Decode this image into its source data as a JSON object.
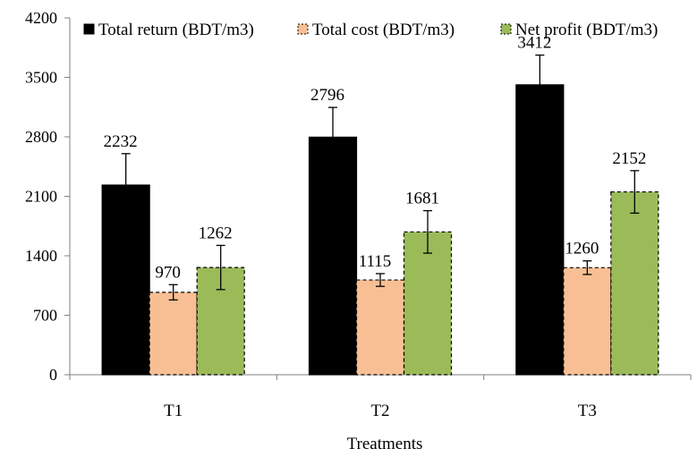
{
  "chart_data": {
    "type": "bar",
    "title": "",
    "xlabel": "Treatments",
    "ylabel": "",
    "categories": [
      "T1",
      "T2",
      "T3"
    ],
    "ylim": [
      0,
      4200
    ],
    "yticks": [
      "0",
      "700",
      "1400",
      "2100",
      "2800",
      "3500",
      "4200"
    ],
    "legend_position": "top",
    "grid": false,
    "series": [
      {
        "name": "Total return (BDT/m3)",
        "values": [
          2232,
          2796,
          3412
        ],
        "errors": [
          370,
          350,
          350
        ],
        "color": "#000000",
        "edge": "#000000",
        "dashed": false
      },
      {
        "name": "Total cost (BDT/m3)",
        "values": [
          970,
          1115,
          1260
        ],
        "errors": [
          90,
          75,
          80
        ],
        "color": "#f9bf94",
        "edge": "#000000",
        "dashed": true
      },
      {
        "name": "Net profit (BDT/m3)",
        "values": [
          1262,
          1681,
          2152
        ],
        "errors": [
          260,
          250,
          250
        ],
        "color": "#9bbb59",
        "edge": "#000000",
        "dashed": true
      }
    ]
  }
}
